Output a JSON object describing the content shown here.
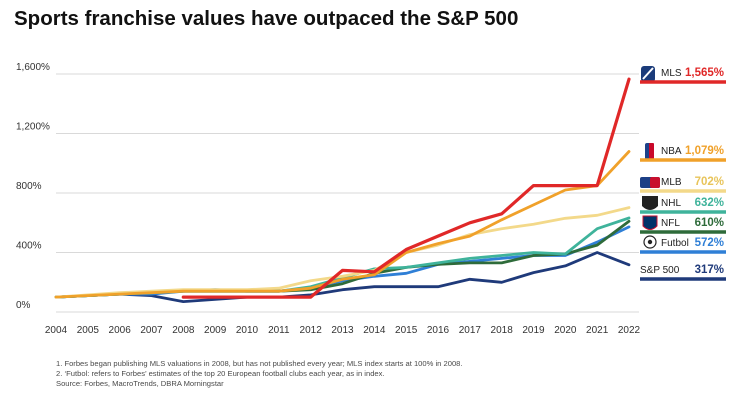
{
  "title": "Sports franchise values have outpaced the S&P 500",
  "footnotes": [
    "1. Forbes began publishing MLS valuations in 2008, but has not published every year; MLS index starts at 100% in 2008.",
    "2. ‘Futbol: refers to Forbes’ estimates of the top 20 European football clubs each year, as in index.",
    "Source: Forbes, MacroTrends, DBRA Morningstar"
  ],
  "chart_data": {
    "type": "line",
    "title": "Sports franchise values have outpaced the S&P 500",
    "xlabel": "",
    "ylabel": "",
    "x": [
      2004,
      2005,
      2006,
      2007,
      2008,
      2009,
      2010,
      2011,
      2012,
      2013,
      2014,
      2015,
      2016,
      2017,
      2018,
      2019,
      2020,
      2021,
      2022
    ],
    "ylim": [
      0,
      1600
    ],
    "yticks": [
      0,
      400,
      800,
      1200,
      1600
    ],
    "ytick_labels": [
      "0%",
      "400%",
      "800%",
      "1,200%",
      "1,600%"
    ],
    "grid": true,
    "legend_position": "right",
    "series": [
      {
        "name": "S&P 500",
        "value_label": "317%",
        "color": "#1f3a7a",
        "icon": "sp500-icon",
        "values": [
          100,
          110,
          120,
          110,
          70,
          85,
          100,
          100,
          115,
          150,
          170,
          170,
          170,
          220,
          200,
          265,
          310,
          400,
          317
        ]
      },
      {
        "name": "Futbol",
        "value_label": "572%",
        "color": "#2f7fd6",
        "icon": "soccer-ball-icon",
        "values": [
          100,
          110,
          120,
          120,
          140,
          150,
          140,
          140,
          160,
          210,
          240,
          260,
          320,
          340,
          360,
          380,
          380,
          470,
          572
        ]
      },
      {
        "name": "NFL",
        "value_label": "610%",
        "color": "#2e6b3a",
        "icon": "nfl-logo-icon",
        "values": [
          100,
          110,
          120,
          130,
          140,
          140,
          140,
          140,
          150,
          190,
          260,
          300,
          320,
          330,
          330,
          380,
          390,
          450,
          610
        ]
      },
      {
        "name": "NHL",
        "value_label": "632%",
        "color": "#3fb39b",
        "icon": "nhl-logo-icon",
        "values": [
          100,
          110,
          120,
          130,
          140,
          140,
          140,
          140,
          170,
          230,
          290,
          300,
          330,
          360,
          380,
          400,
          390,
          560,
          632
        ]
      },
      {
        "name": "MLB",
        "value_label": "702%",
        "color": "#f3d98a",
        "icon": "mlb-logo-icon",
        "values": [
          100,
          115,
          130,
          140,
          150,
          150,
          150,
          160,
          210,
          240,
          280,
          400,
          450,
          520,
          560,
          590,
          630,
          650,
          702
        ]
      },
      {
        "name": "NBA",
        "value_label": "1,079%",
        "color": "#f0a12a",
        "icon": "nba-logo-icon",
        "values": [
          100,
          110,
          120,
          130,
          140,
          140,
          140,
          140,
          160,
          220,
          250,
          400,
          460,
          510,
          620,
          720,
          820,
          850,
          1079
        ]
      },
      {
        "name": "MLS",
        "value_label": "1,565%",
        "color": "#e02828",
        "icon": "mls-logo-icon",
        "values": [
          null,
          null,
          null,
          null,
          100,
          100,
          100,
          100,
          100,
          280,
          270,
          420,
          510,
          600,
          660,
          850,
          850,
          850,
          1565
        ]
      }
    ]
  }
}
